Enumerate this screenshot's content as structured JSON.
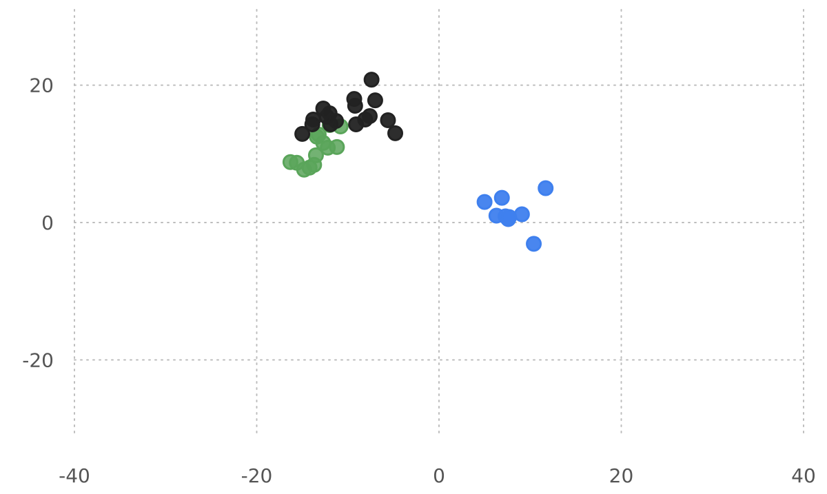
{
  "chart_data": {
    "type": "scatter",
    "title": "",
    "xlabel": "",
    "ylabel": "",
    "xlim": [
      -40,
      40
    ],
    "ylim": [
      -31,
      31
    ],
    "x_ticks": [
      -40,
      -20,
      0,
      20,
      40
    ],
    "x_tick_labels": [
      "-40",
      "-20",
      "0",
      "20",
      "40"
    ],
    "y_ticks": [
      -20,
      0,
      20
    ],
    "y_tick_labels": [
      "-20",
      "0",
      "20"
    ],
    "grid": true,
    "legend": "none",
    "series": [
      {
        "color": "#5aa55a",
        "points": [
          [
            -16.3,
            8.8
          ],
          [
            -15.6,
            8.7
          ],
          [
            -14.8,
            7.7
          ],
          [
            -14.2,
            8.0
          ],
          [
            -13.7,
            8.4
          ],
          [
            -13.5,
            9.8
          ],
          [
            -13.4,
            12.5
          ],
          [
            -12.7,
            11.6
          ],
          [
            -12.2,
            10.9
          ],
          [
            -12.0,
            14.2
          ],
          [
            -11.2,
            11.0
          ],
          [
            -10.8,
            14.0
          ],
          [
            -13.2,
            12.8
          ]
        ]
      },
      {
        "color": "#222222",
        "points": [
          [
            -15.0,
            12.9
          ],
          [
            -13.9,
            14.3
          ],
          [
            -13.8,
            15.0
          ],
          [
            -12.7,
            16.6
          ],
          [
            -12.3,
            15.4
          ],
          [
            -12.0,
            15.9
          ],
          [
            -11.9,
            14.3
          ],
          [
            -11.3,
            14.8
          ],
          [
            -9.3,
            18.0
          ],
          [
            -9.2,
            17.0
          ],
          [
            -9.1,
            14.3
          ],
          [
            -8.1,
            15.0
          ],
          [
            -7.6,
            15.5
          ],
          [
            -7.4,
            20.8
          ],
          [
            -7.0,
            17.8
          ],
          [
            -5.6,
            14.9
          ],
          [
            -4.8,
            13.0
          ]
        ]
      },
      {
        "color": "#3f80ee",
        "points": [
          [
            5.0,
            3.0
          ],
          [
            6.3,
            1.0
          ],
          [
            6.9,
            3.6
          ],
          [
            7.3,
            0.9
          ],
          [
            7.6,
            0.5
          ],
          [
            7.7,
            0.8
          ],
          [
            9.1,
            1.2
          ],
          [
            10.4,
            -3.1
          ],
          [
            11.7,
            5.0
          ]
        ]
      }
    ]
  }
}
